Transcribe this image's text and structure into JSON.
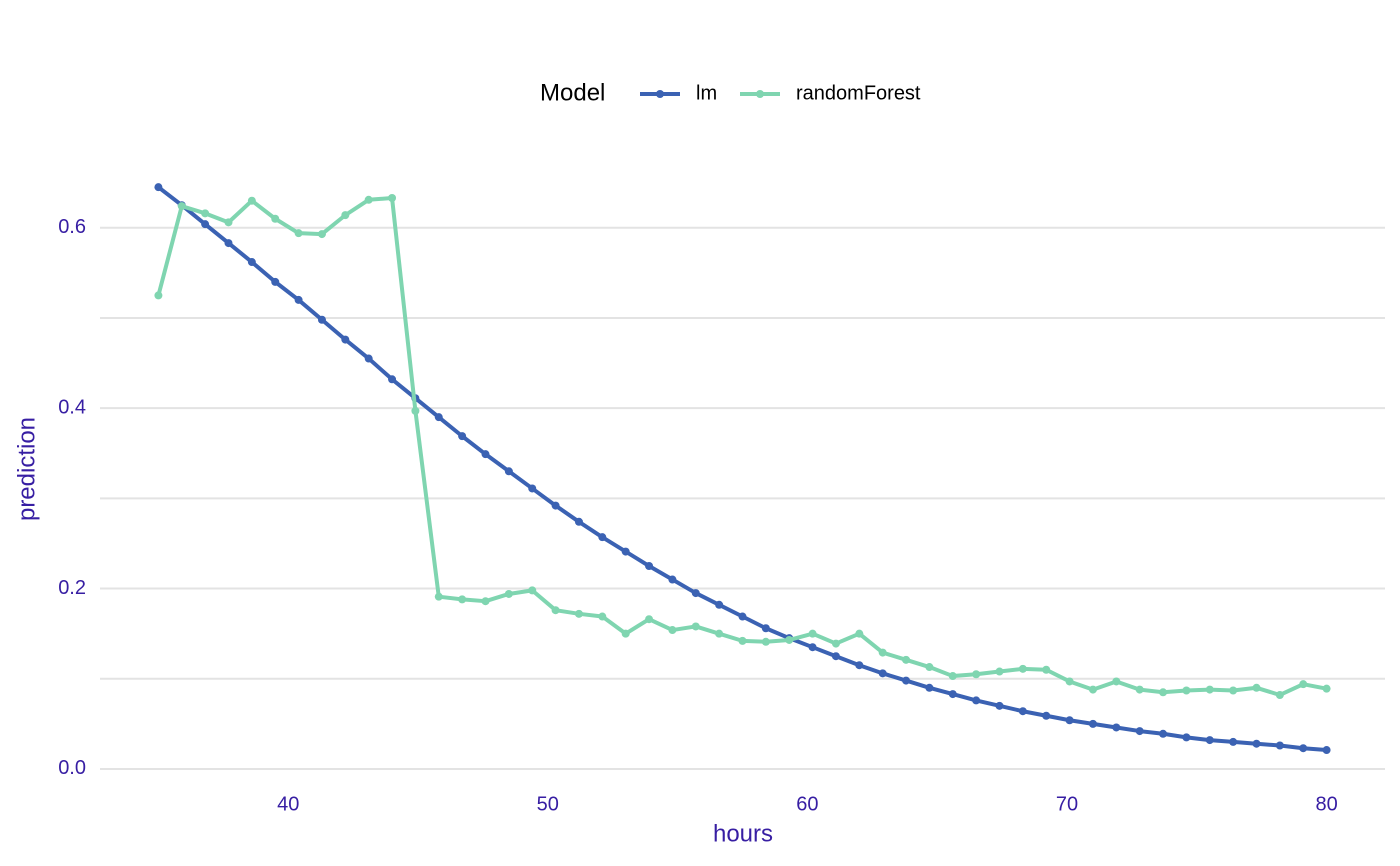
{
  "chart_data": {
    "type": "line",
    "xlabel": "hours",
    "ylabel": "prediction",
    "legend_title": "Model",
    "legend": "top",
    "grid": true,
    "x": [
      35,
      35.9,
      36.8,
      37.7,
      38.6,
      39.5,
      40.4,
      41.3,
      42.2,
      43.1,
      44,
      44.9,
      45.8,
      46.7,
      47.6,
      48.5,
      49.4,
      50.3,
      51.2,
      52.1,
      53,
      53.9,
      54.8,
      55.7,
      56.6,
      57.5,
      58.4,
      59.3,
      60.2,
      61.1,
      62,
      62.9,
      63.8,
      64.7,
      65.6,
      66.5,
      67.4,
      68.3,
      69.2,
      70.1,
      71,
      71.9,
      72.8,
      73.7,
      74.6,
      75.5,
      76.4,
      77.3,
      78.2,
      79.1,
      80
    ],
    "series": [
      {
        "name": "lm",
        "color": "#3b62b3",
        "values": [
          0.645,
          0.625,
          0.604,
          0.583,
          0.562,
          0.54,
          0.52,
          0.498,
          0.476,
          0.455,
          0.432,
          0.411,
          0.39,
          0.369,
          0.349,
          0.33,
          0.311,
          0.292,
          0.274,
          0.257,
          0.241,
          0.225,
          0.21,
          0.195,
          0.182,
          0.169,
          0.156,
          0.145,
          0.135,
          0.125,
          0.115,
          0.106,
          0.098,
          0.09,
          0.083,
          0.076,
          0.07,
          0.064,
          0.059,
          0.054,
          0.05,
          0.046,
          0.042,
          0.039,
          0.035,
          0.032,
          0.03,
          0.028,
          0.026,
          0.023,
          0.021
        ]
      },
      {
        "name": "randomForest",
        "color": "#7fd5b0",
        "values": [
          0.525,
          0.624,
          0.616,
          0.606,
          0.63,
          0.61,
          0.594,
          0.593,
          0.614,
          0.631,
          0.633,
          0.397,
          0.191,
          0.188,
          0.186,
          0.194,
          0.198,
          0.176,
          0.172,
          0.169,
          0.15,
          0.166,
          0.154,
          0.158,
          0.15,
          0.142,
          0.141,
          0.143,
          0.15,
          0.139,
          0.15,
          0.129,
          0.121,
          0.113,
          0.103,
          0.105,
          0.108,
          0.111,
          0.11,
          0.097,
          0.088,
          0.097,
          0.088,
          0.085,
          0.087,
          0.088,
          0.087,
          0.09,
          0.082,
          0.094,
          0.089
        ]
      }
    ],
    "xlim": [
      32.75,
      82.25
    ],
    "xticks": [
      40,
      50,
      60,
      70,
      80
    ],
    "ylim": [
      -0.02,
      0.68
    ],
    "yticks": [
      {
        "value": 0,
        "label": "0.0"
      },
      0.2,
      0.4,
      0.6
    ],
    "yminor_ticks": [
      0.1,
      0.3,
      0.5
    ]
  }
}
